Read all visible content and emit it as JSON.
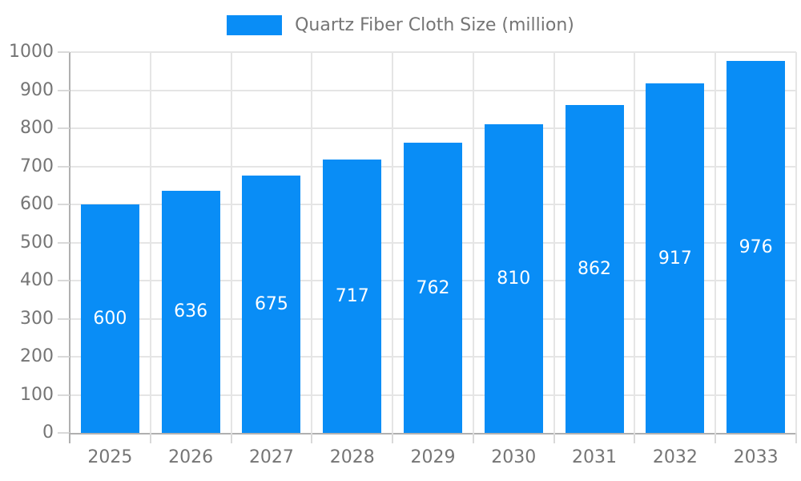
{
  "chart_data": {
    "type": "bar",
    "title": "Quartz Fiber Cloth Size (million)",
    "categories": [
      "2025",
      "2026",
      "2027",
      "2028",
      "2029",
      "2030",
      "2031",
      "2032",
      "2033"
    ],
    "values": [
      600,
      636,
      675,
      717,
      762,
      810,
      862,
      917,
      976
    ],
    "xlabel": "",
    "ylabel": "",
    "ylim": [
      0,
      1000
    ],
    "ytick_interval": 100,
    "ytick_labels": [
      "0",
      "100",
      "200",
      "300",
      "400",
      "500",
      "600",
      "700",
      "800",
      "900",
      "1000"
    ],
    "grid": true,
    "legend_position": "top-center",
    "bar_color": "#098DF6",
    "bar_label_color": "#ffffff",
    "axis_text_color": "#757575",
    "gridline_color": "#E5E5E5",
    "tick_color": "#D9D9D9",
    "axis_line_color": "#B0B0B0",
    "background_color": "#ffffff"
  }
}
